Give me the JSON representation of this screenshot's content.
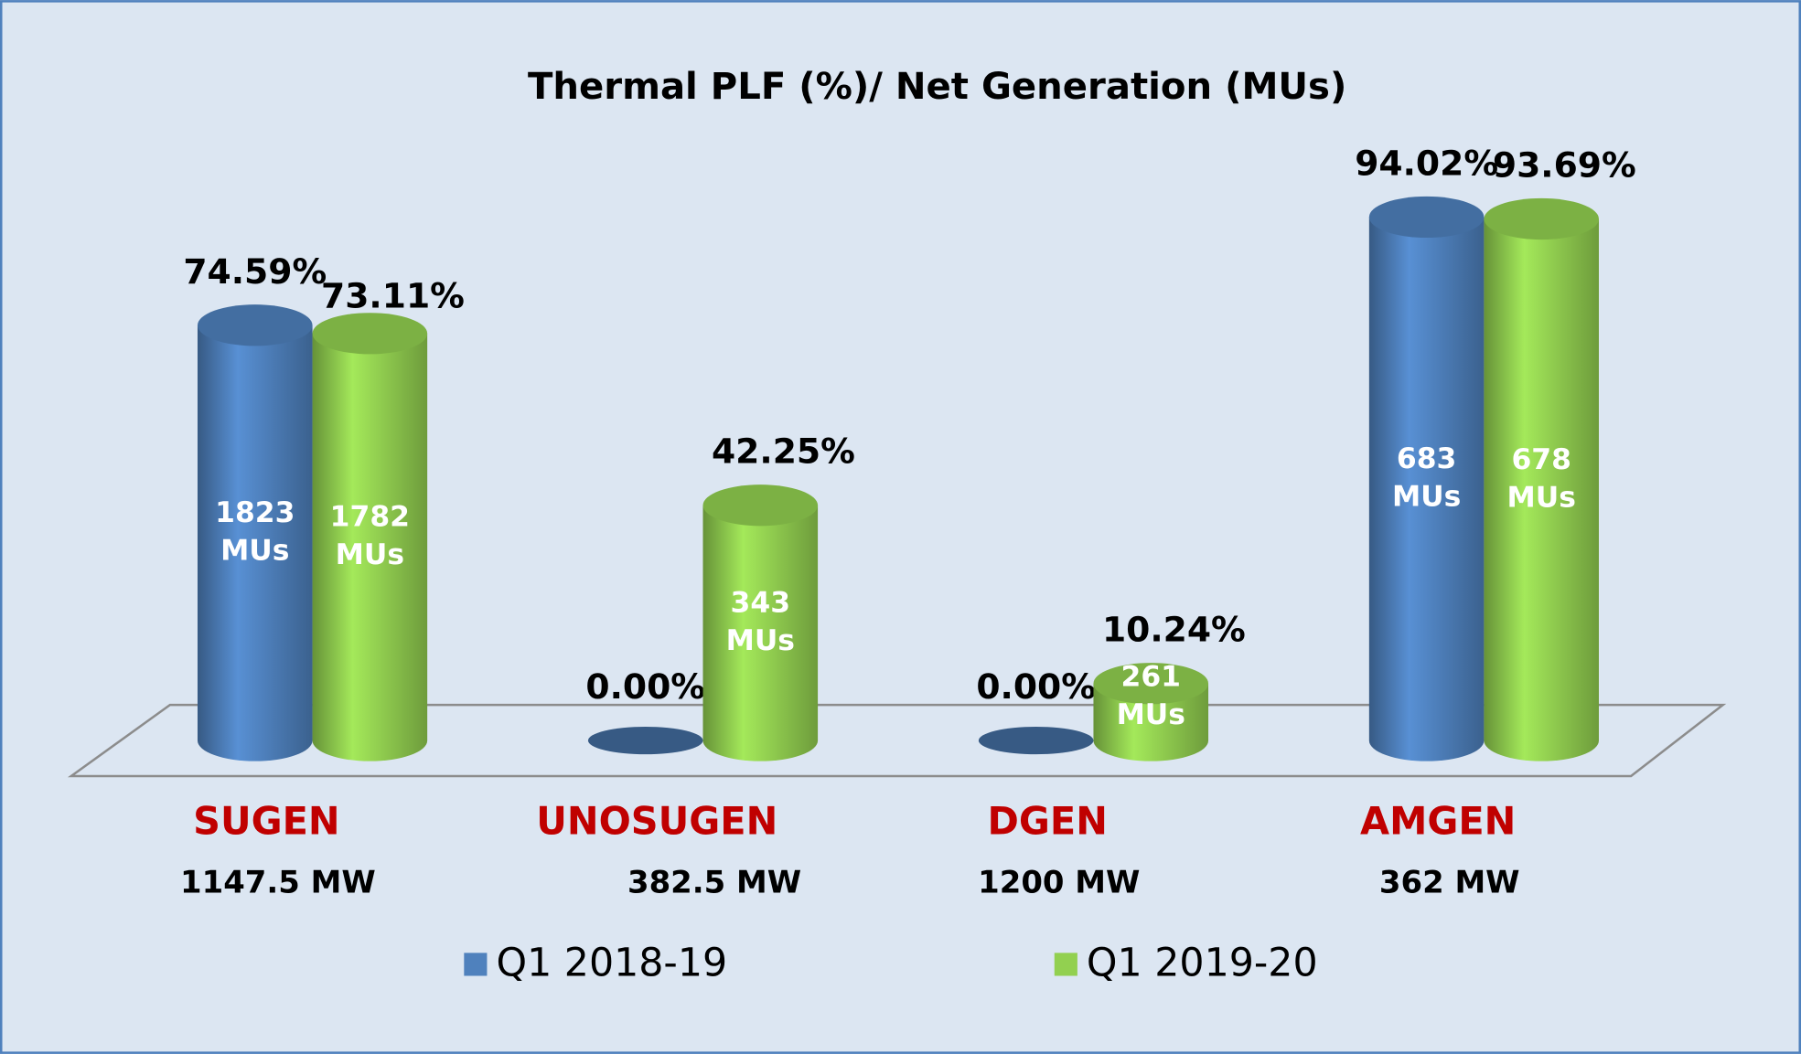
{
  "chart_data": {
    "type": "cylinder",
    "title": "Thermal PLF (%)/ Net Generation (MUs)",
    "categories": [
      "SUGEN",
      "UNOSUGEN",
      "DGEN",
      "AMGEN"
    ],
    "category_notes": [
      "1147.5 MW",
      "382.5 MW",
      "1200 MW",
      "362 MW"
    ],
    "ylim": [
      0,
      100
    ],
    "series": [
      {
        "name": "Q1 2018-19",
        "color": "#4f81bd",
        "values": [
          74.59,
          0,
          0,
          94.02
        ],
        "value_labels": [
          "74.59%",
          "0.00%",
          "0.00%",
          "94.02%"
        ],
        "generation": [
          1823,
          null,
          null,
          683
        ],
        "generation_labels": [
          "1823 MUs",
          null,
          null,
          "683 MUs"
        ]
      },
      {
        "name": "Q1 2019-20",
        "color": "#92d050",
        "values": [
          73.11,
          42.25,
          10.24,
          93.69
        ],
        "value_labels": [
          "73.11%",
          "42.25%",
          "10.24%",
          "93.69%"
        ],
        "generation": [
          1782,
          343,
          261,
          678
        ],
        "generation_labels": [
          "1782 MUs",
          "343 MUs",
          "261 MUs",
          "678 MUs"
        ]
      }
    ],
    "legend": "bottom"
  }
}
